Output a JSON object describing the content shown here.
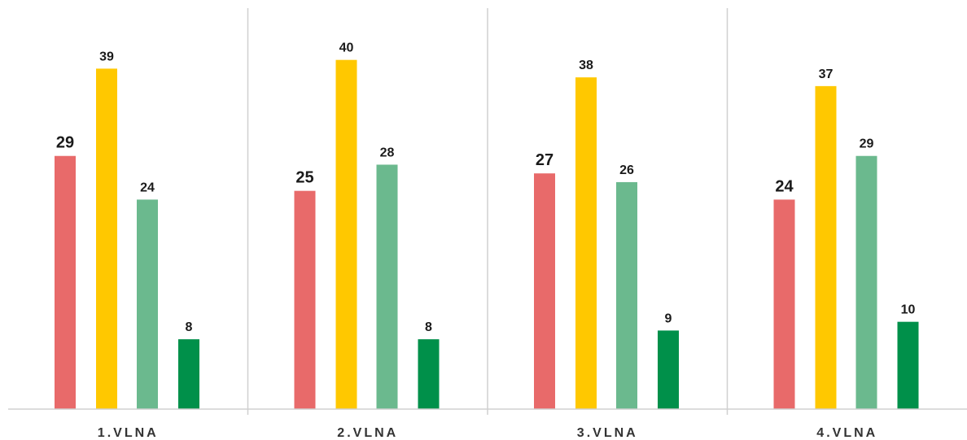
{
  "chart_data": {
    "type": "bar",
    "categories": [
      "1.VLNA",
      "2.VLNA",
      "3.VLNA",
      "4.VLNA"
    ],
    "series": [
      {
        "values": [
          29,
          25,
          27,
          24
        ],
        "color": "#E86A6A"
      },
      {
        "values": [
          39,
          40,
          38,
          37
        ],
        "color": "#FFC800"
      },
      {
        "values": [
          24,
          28,
          26,
          29
        ],
        "color": "#6BB98E"
      },
      {
        "values": [
          8,
          8,
          9,
          10
        ],
        "color": "#00904A"
      }
    ],
    "ylim": [
      0,
      45
    ],
    "grid": false,
    "legend": "none",
    "title": "",
    "xlabel": "",
    "ylabel": ""
  }
}
